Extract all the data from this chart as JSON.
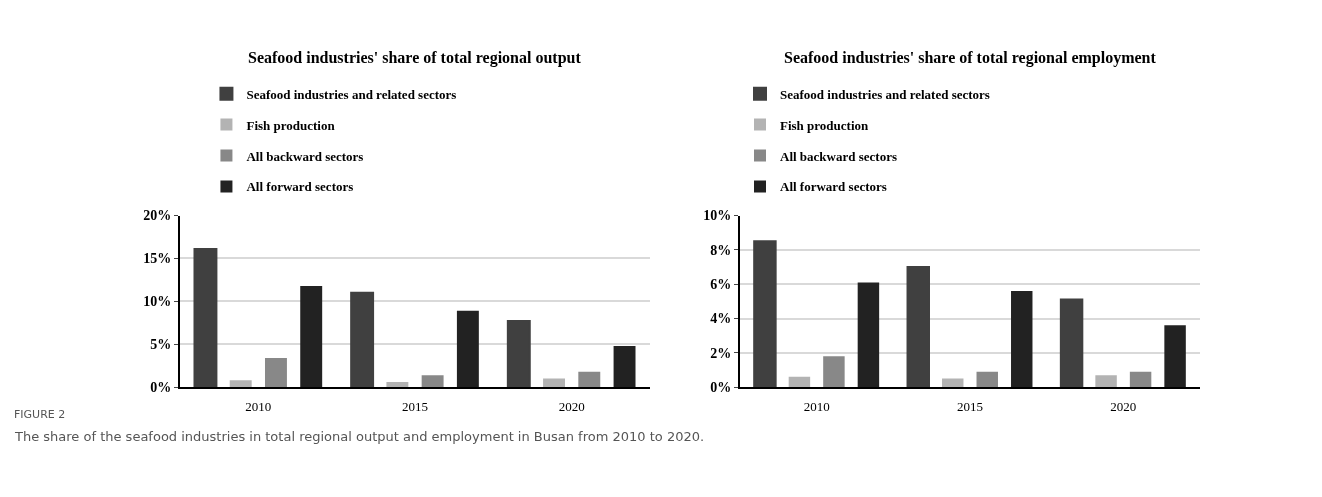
{
  "chart_data": [
    {
      "type": "bar",
      "title": "Seafood industries' share of total regional output",
      "categories": [
        "2010",
        "2015",
        "2020"
      ],
      "series": [
        {
          "name": "Seafood industries and related sectors",
          "color": "#404040",
          "values": [
            16.1,
            11.0,
            7.7
          ]
        },
        {
          "name": "Fish production",
          "color": "#b3b3b3",
          "values": [
            0.8,
            0.6,
            1.0
          ]
        },
        {
          "name": "All backward sectors",
          "color": "#888888",
          "values": [
            3.4,
            1.4,
            1.8
          ]
        },
        {
          "name": "All forward sectors",
          "color": "#222222",
          "values": [
            11.8,
            8.9,
            4.8
          ]
        }
      ],
      "ylim": [
        0,
        20
      ],
      "yticks": [
        {
          "value": 0,
          "label": "0%"
        },
        {
          "value": 5,
          "label": "5%"
        },
        {
          "value": 10,
          "label": "10%"
        },
        {
          "value": 15,
          "label": "15%"
        },
        {
          "value": 20,
          "label": "20%"
        }
      ],
      "grid": "y",
      "legend": "top",
      "annotations": [
        "FIGURE 2",
        "The share of the seafood industries in total regional output and employment in Busan from 2010 to 2020."
      ]
    },
    {
      "type": "bar",
      "title": "Seafood industries' share of total regional employment",
      "categories": [
        "2010",
        "2015",
        "2020"
      ],
      "series": [
        {
          "name": "Seafood industries and related sectors",
          "color": "#404040",
          "values": [
            8.5,
            7.0,
            5.1
          ]
        },
        {
          "name": "Fish production",
          "color": "#b3b3b3",
          "values": [
            0.6,
            0.5,
            0.7
          ]
        },
        {
          "name": "All backward sectors",
          "color": "#888888",
          "values": [
            1.8,
            0.9,
            0.9
          ]
        },
        {
          "name": "All forward sectors",
          "color": "#222222",
          "values": [
            6.1,
            5.6,
            3.6
          ]
        }
      ],
      "ylim": [
        0,
        10
      ],
      "yticks": [
        {
          "value": 0,
          "label": "0%"
        },
        {
          "value": 2,
          "label": "2%"
        },
        {
          "value": 4,
          "label": "4%"
        },
        {
          "value": 6,
          "label": "6%"
        },
        {
          "value": 8,
          "label": "8%"
        },
        {
          "value": 10,
          "label": "10%"
        }
      ],
      "grid": "y",
      "legend": "top"
    }
  ]
}
